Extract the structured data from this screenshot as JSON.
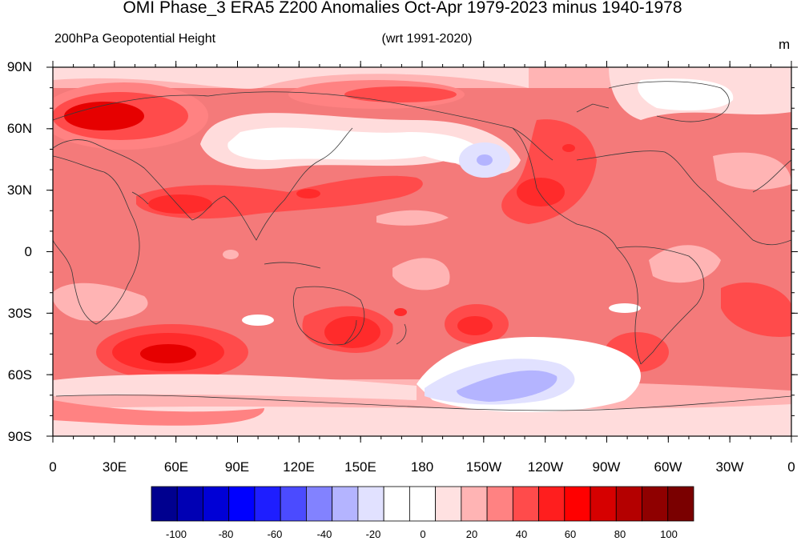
{
  "title": "OMI Phase_3 ERA5 Z200 Anomalies Oct-Apr 1979-2023 minus 1940-1978",
  "subtitle_left": "200hPa Geopotential Height",
  "subtitle_center": "(wrt 1991-2020)",
  "units": "m",
  "lat_labels": [
    "90N",
    "60N",
    "30N",
    "0",
    "30S",
    "60S",
    "90S"
  ],
  "lon_labels": [
    "0",
    "30E",
    "60E",
    "90E",
    "120E",
    "150E",
    "180",
    "150W",
    "120W",
    "90W",
    "60W",
    "30W",
    "0"
  ],
  "colorbar": {
    "labels": [
      "-100",
      "-80",
      "-60",
      "-40",
      "-20",
      "0",
      "20",
      "40",
      "60",
      "80",
      "100"
    ],
    "colors": [
      "#00008f",
      "#0000b4",
      "#0000d6",
      "#0000ff",
      "#1e1eff",
      "#4b4bff",
      "#8282ff",
      "#b4b4ff",
      "#e1e1ff",
      "#ffffff",
      "#ffffff",
      "#ffe1e1",
      "#ffb4b4",
      "#ff8282",
      "#ff4b4b",
      "#ff1e1e",
      "#ff0000",
      "#d60000",
      "#b40000",
      "#8f0000",
      "#7a0000"
    ]
  },
  "palette": {
    "base": "#f47a7a",
    "light_pink": "#ffdcdc",
    "pink": "#ffb4b4",
    "mid_red": "#f45e5e",
    "red": "#ff2b2b",
    "dark_red": "#e60000",
    "light_blue": "#e1e1ff",
    "blue": "#b4b4ff"
  }
}
